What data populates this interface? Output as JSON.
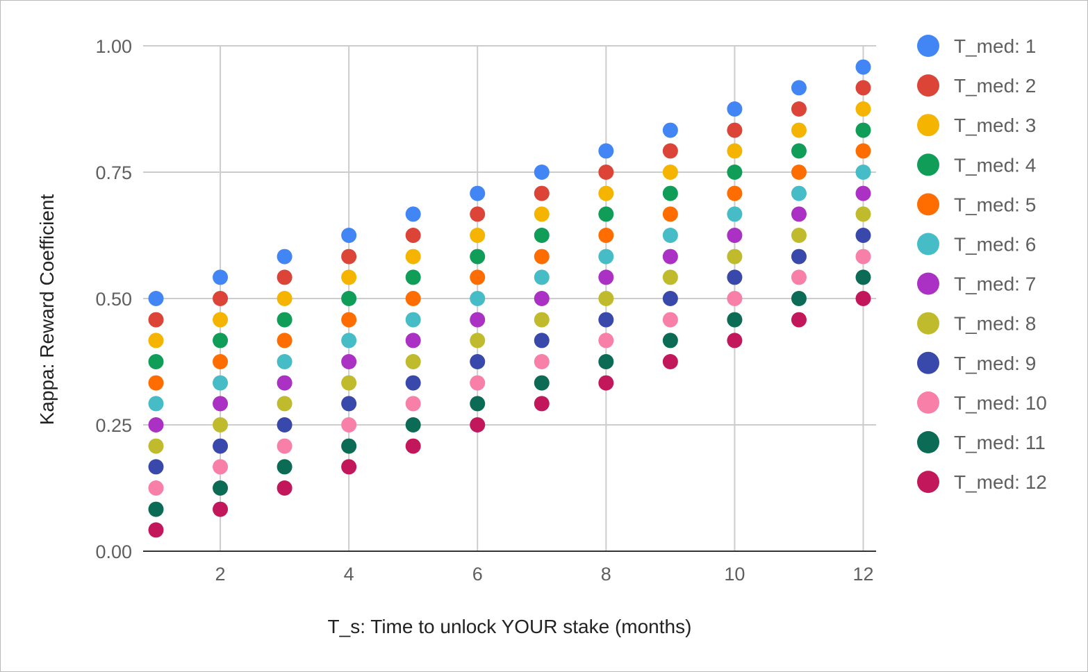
{
  "chart_data": {
    "type": "scatter",
    "title": "",
    "xlabel": "T_s: Time to unlock YOUR stake (months)",
    "ylabel": "Kappa: Reward Coefficient",
    "xlim": [
      0.8,
      12.2
    ],
    "ylim": [
      0,
      1
    ],
    "x_ticks": [
      2,
      4,
      6,
      8,
      10,
      12
    ],
    "x_tick_labels": [
      "2",
      "4",
      "6",
      "8",
      "10",
      "12"
    ],
    "y_ticks": [
      0,
      0.25,
      0.5,
      0.75,
      1
    ],
    "y_tick_labels": [
      "0.00",
      "0.25",
      "0.50",
      "0.75",
      "1.00"
    ],
    "grid": true,
    "legend_position": "right",
    "x": [
      1,
      2,
      3,
      4,
      5,
      6,
      7,
      8,
      9,
      10,
      11,
      12
    ],
    "series": [
      {
        "name": "T_med: 1",
        "color": "#4285f4",
        "values": [
          0.5,
          0.542,
          0.583,
          0.625,
          0.667,
          0.708,
          0.75,
          0.792,
          0.833,
          0.875,
          0.917,
          0.958
        ]
      },
      {
        "name": "T_med: 2",
        "color": "#db4437",
        "values": [
          0.458,
          0.5,
          0.542,
          0.583,
          0.625,
          0.667,
          0.708,
          0.75,
          0.792,
          0.833,
          0.875,
          0.917
        ]
      },
      {
        "name": "T_med: 3",
        "color": "#f4b400",
        "values": [
          0.417,
          0.458,
          0.5,
          0.542,
          0.583,
          0.625,
          0.667,
          0.708,
          0.75,
          0.792,
          0.833,
          0.875
        ]
      },
      {
        "name": "T_med: 4",
        "color": "#0f9d58",
        "values": [
          0.375,
          0.417,
          0.458,
          0.5,
          0.542,
          0.583,
          0.625,
          0.667,
          0.708,
          0.75,
          0.792,
          0.833
        ]
      },
      {
        "name": "T_med: 5",
        "color": "#ff6d01",
        "values": [
          0.333,
          0.375,
          0.417,
          0.458,
          0.5,
          0.542,
          0.583,
          0.625,
          0.667,
          0.708,
          0.75,
          0.792
        ]
      },
      {
        "name": "T_med: 6",
        "color": "#46bdc6",
        "values": [
          0.292,
          0.333,
          0.375,
          0.417,
          0.458,
          0.5,
          0.542,
          0.583,
          0.625,
          0.667,
          0.708,
          0.75
        ]
      },
      {
        "name": "T_med: 7",
        "color": "#ab30c4",
        "values": [
          0.25,
          0.292,
          0.333,
          0.375,
          0.417,
          0.458,
          0.5,
          0.542,
          0.583,
          0.625,
          0.667,
          0.708
        ]
      },
      {
        "name": "T_med: 8",
        "color": "#bfbb2c",
        "values": [
          0.208,
          0.25,
          0.292,
          0.333,
          0.375,
          0.417,
          0.458,
          0.5,
          0.542,
          0.583,
          0.625,
          0.667
        ]
      },
      {
        "name": "T_med: 9",
        "color": "#3949ab",
        "values": [
          0.167,
          0.208,
          0.25,
          0.292,
          0.333,
          0.375,
          0.417,
          0.458,
          0.5,
          0.542,
          0.583,
          0.625
        ]
      },
      {
        "name": "T_med: 10",
        "color": "#f77fa8",
        "values": [
          0.125,
          0.167,
          0.208,
          0.25,
          0.292,
          0.333,
          0.375,
          0.417,
          0.458,
          0.5,
          0.542,
          0.583
        ]
      },
      {
        "name": "T_med: 11",
        "color": "#0b6b55",
        "values": [
          0.083,
          0.125,
          0.167,
          0.208,
          0.25,
          0.292,
          0.333,
          0.375,
          0.417,
          0.458,
          0.5,
          0.542
        ]
      },
      {
        "name": "T_med: 12",
        "color": "#c2185b",
        "values": [
          0.042,
          0.083,
          0.125,
          0.167,
          0.208,
          0.25,
          0.292,
          0.333,
          0.375,
          0.417,
          0.458,
          0.5
        ]
      }
    ]
  }
}
